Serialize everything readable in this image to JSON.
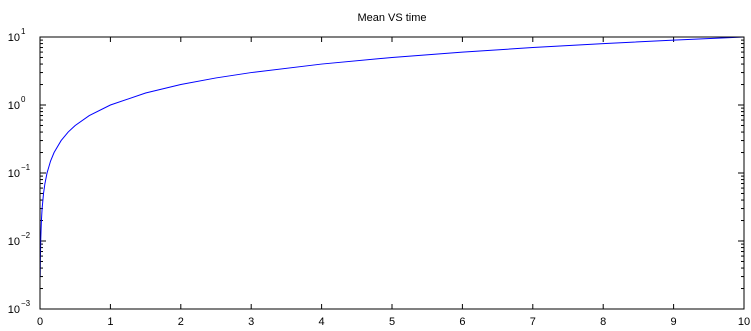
{
  "chart_data": {
    "type": "line",
    "title": "Mean VS time",
    "xlabel": "",
    "ylabel": "",
    "xlim": [
      0,
      10
    ],
    "ylim": [
      0.001,
      10
    ],
    "yscale": "log",
    "grid": false,
    "x_ticks": [
      "0",
      "1",
      "2",
      "3",
      "4",
      "5",
      "6",
      "7",
      "8",
      "9",
      "10"
    ],
    "y_ticks": [
      {
        "value": 0.001,
        "base": "10",
        "exponent": "−3"
      },
      {
        "value": 0.01,
        "base": "10",
        "exponent": "−2"
      },
      {
        "value": 0.1,
        "base": "10",
        "exponent": "−1"
      },
      {
        "value": 1,
        "base": "10",
        "exponent": "0"
      },
      {
        "value": 10,
        "base": "10",
        "exponent": "1"
      }
    ],
    "series": [
      {
        "color": "#0000ff",
        "x": [
          0.003,
          0.005,
          0.01,
          0.02,
          0.03,
          0.05,
          0.07,
          0.1,
          0.15,
          0.2,
          0.3,
          0.4,
          0.5,
          0.7,
          1,
          1.5,
          2,
          2.5,
          3,
          4,
          5,
          6,
          7,
          8,
          9,
          10
        ],
        "y": [
          0.003,
          0.005,
          0.01,
          0.02,
          0.03,
          0.05,
          0.07,
          0.1,
          0.15,
          0.2,
          0.3,
          0.4,
          0.5,
          0.7,
          1,
          1.5,
          2,
          2.5,
          3,
          4,
          5,
          6,
          7,
          8,
          9,
          10
        ]
      }
    ]
  }
}
